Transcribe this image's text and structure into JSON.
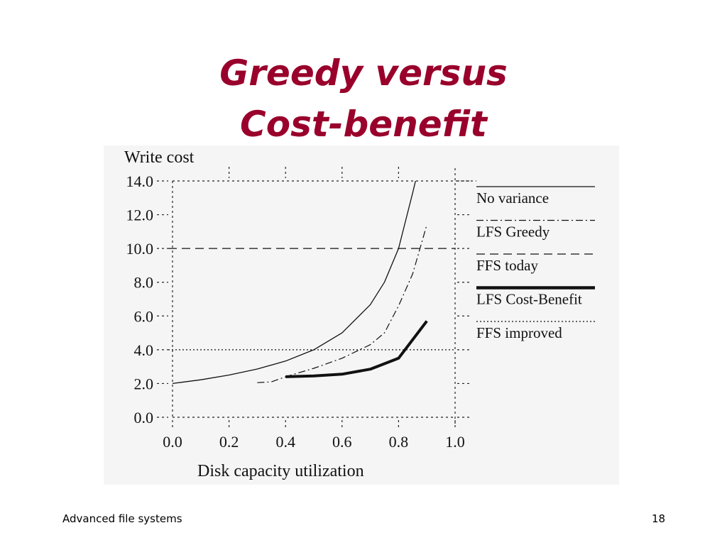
{
  "slide": {
    "title_line1": "Greedy versus",
    "title_line2": "Cost-benefit",
    "footer_left": "Advanced file systems",
    "footer_right": "18",
    "title_color": "#99002b"
  },
  "chart_data": {
    "type": "line",
    "title": "",
    "xlabel": "Disk capacity utilization",
    "ylabel": "Write cost",
    "xlim": [
      0.0,
      1.0
    ],
    "ylim": [
      0.0,
      14.0
    ],
    "x_ticks": [
      "0.0",
      "0.2",
      "0.4",
      "0.6",
      "0.8",
      "1.0"
    ],
    "y_ticks": [
      "0.0",
      "2.0",
      "4.0",
      "6.0",
      "8.0",
      "10.0",
      "12.0",
      "14.0"
    ],
    "grid": "dotted",
    "legend_position": "right",
    "series": [
      {
        "name": "No variance",
        "style": "solid-thin",
        "x": [
          0.0,
          0.1,
          0.2,
          0.3,
          0.4,
          0.5,
          0.6,
          0.7,
          0.75,
          0.8,
          0.85,
          0.86
        ],
        "y": [
          2.0,
          2.22,
          2.5,
          2.86,
          3.33,
          4.0,
          5.0,
          6.67,
          8.0,
          10.0,
          13.3,
          14.0
        ]
      },
      {
        "name": "LFS Greedy",
        "style": "dash-dot",
        "x": [
          0.3,
          0.35,
          0.4,
          0.5,
          0.6,
          0.7,
          0.75,
          0.8,
          0.85,
          0.9
        ],
        "y": [
          2.05,
          2.1,
          2.4,
          2.9,
          3.5,
          4.3,
          5.0,
          6.6,
          8.5,
          11.4
        ]
      },
      {
        "name": "FFS today",
        "style": "dashed",
        "constant": 10.0
      },
      {
        "name": "LFS Cost-Benefit",
        "style": "solid-thick",
        "x": [
          0.4,
          0.5,
          0.6,
          0.7,
          0.8,
          0.9
        ],
        "y": [
          2.4,
          2.45,
          2.55,
          2.85,
          3.5,
          5.7
        ]
      },
      {
        "name": "FFS improved",
        "style": "dotted",
        "constant": 4.0
      }
    ]
  }
}
